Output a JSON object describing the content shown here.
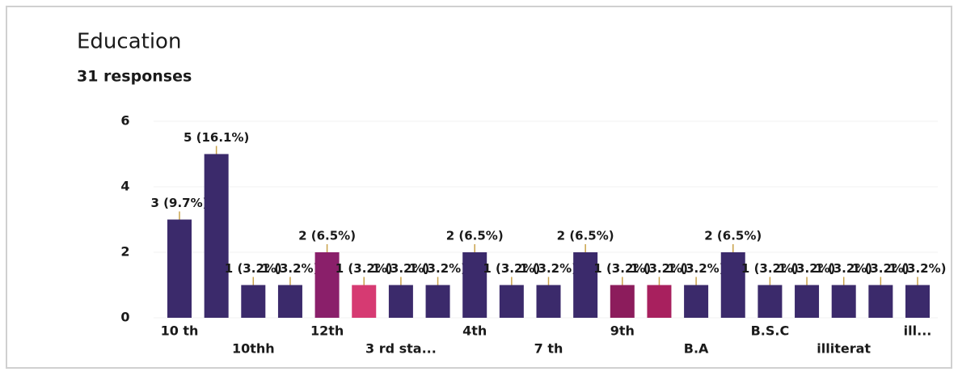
{
  "chart_data": {
    "type": "bar",
    "title": "Education",
    "subtitle": "31 responses",
    "categories": [
      "10 th",
      null,
      "10thh",
      null,
      "12th",
      null,
      "3 rd sta...",
      null,
      "4th",
      null,
      "7 th",
      null,
      "9th",
      null,
      "B.A",
      null,
      "B.S.C",
      null,
      "illiterat",
      null,
      "ill..."
    ],
    "values": [
      3,
      5,
      1,
      1,
      2,
      1,
      1,
      1,
      2,
      1,
      1,
      2,
      1,
      1,
      1,
      2,
      1,
      1,
      1,
      1,
      1
    ],
    "value_labels": [
      "3 (9.7%)",
      "5 (16.1%)",
      "1 (3.2%)",
      "1 (3.2%)",
      "2 (6.5%)",
      "1 (3.2%)",
      "1 (3.2%)",
      "1 (3.2%)",
      "2 (6.5%)",
      "1 (3.2%)",
      "1 (3.2%)",
      "2 (6.5%)",
      "1 (3.2%)",
      "1 (3.2%)",
      "1 (3.2%)",
      "2 (6.5%)",
      "1 (3.2%)",
      "1 (3.2%)",
      "1 (3.2%)",
      "1 (3.2%)",
      "1 (3.2%)"
    ],
    "colors": [
      "#3b2a6b",
      "#3b2a6b",
      "#3b2a6b",
      "#3b2a6b",
      "#8a1f6a",
      "#d63a72",
      "#3b2a6b",
      "#3b2a6b",
      "#3b2a6b",
      "#3b2a6b",
      "#3b2a6b",
      "#3b2a6b",
      "#8c1c5c",
      "#a8205e",
      "#3b2a6b",
      "#3b2a6b",
      "#3b2a6b",
      "#3b2a6b",
      "#3b2a6b",
      "#3b2a6b",
      "#3b2a6b"
    ],
    "ylim": [
      0,
      6
    ],
    "yticks": [
      0,
      2,
      4,
      6
    ]
  }
}
